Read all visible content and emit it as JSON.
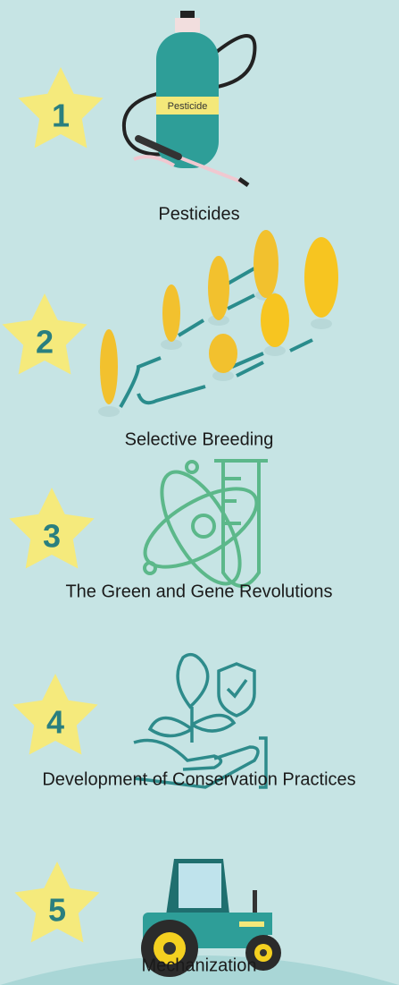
{
  "tank_label": "Pesticide",
  "items": [
    {
      "number": "1",
      "label": "Pesticides"
    },
    {
      "number": "2",
      "label": "Selective Breeding"
    },
    {
      "number": "3",
      "label": "The Green and Gene Revolutions"
    },
    {
      "number": "4",
      "label": "Development of Conservation Practices"
    },
    {
      "number": "5",
      "label": "Mechanization"
    }
  ]
}
